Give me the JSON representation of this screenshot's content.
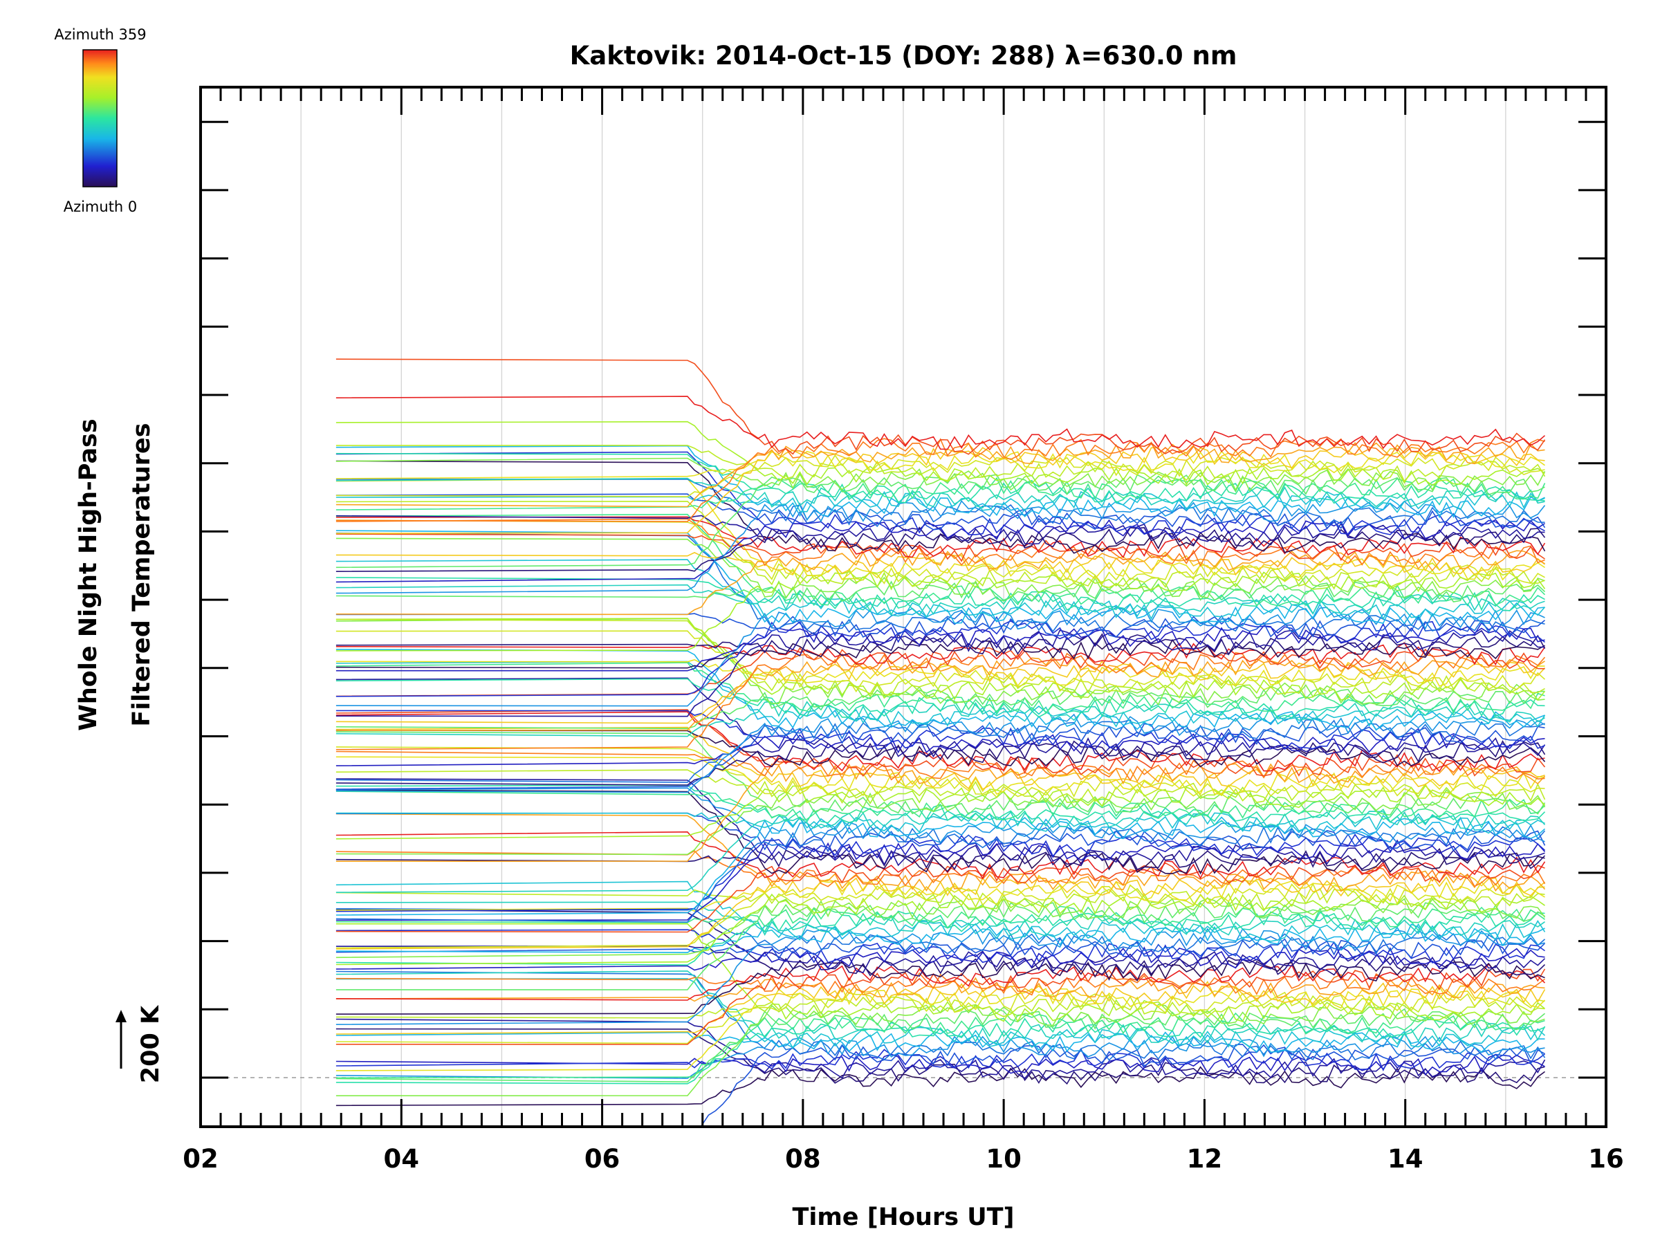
{
  "chart_data": {
    "type": "line",
    "title": "Kaktovik: 2014-Oct-15 (DOY: 288) λ=630.0 nm",
    "xlabel": "Time [Hours UT]",
    "ylabel_lines": [
      "Whole Night High-Pass",
      "Filtered Temperatures"
    ],
    "xlim": [
      2,
      16
    ],
    "x_ticks": [
      2,
      4,
      6,
      8,
      10,
      12,
      14,
      16
    ],
    "x_tick_labels": [
      "02",
      "04",
      "06",
      "08",
      "10",
      "12",
      "14",
      "16"
    ],
    "scale_marker": {
      "label": "200 K",
      "offset_K": 200
    },
    "colorbar": {
      "min_label": "Azimuth 0",
      "max_label": "Azimuth 359",
      "min": 0,
      "max": 359,
      "colormap": "rainbow"
    },
    "grid": true,
    "data_time_range": [
      3.35,
      15.45
    ],
    "n_series": 144,
    "series_spacing_K": 18.3,
    "series_groups": [
      {
        "azimuth_range": [
          0,
          359
        ],
        "note": "group 1 (bottom)"
      },
      {
        "azimuth_range": [
          0,
          359
        ],
        "note": "group 2"
      },
      {
        "azimuth_range": [
          0,
          359
        ],
        "note": "group 3"
      },
      {
        "azimuth_range": [
          0,
          359
        ],
        "note": "group 4"
      },
      {
        "azimuth_range": [
          0,
          359
        ],
        "note": "group 5"
      },
      {
        "azimuth_range": [
          0,
          359
        ],
        "note": "group 6 (top)"
      }
    ]
  }
}
